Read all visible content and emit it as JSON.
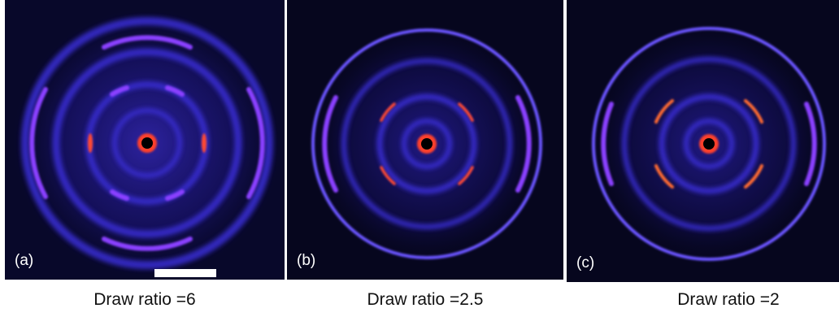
{
  "panels": [
    {
      "tag": "(a)",
      "caption": "Draw ratio =6"
    },
    {
      "tag": "(b)",
      "caption": "Draw ratio =2.5"
    },
    {
      "tag": "(c)",
      "caption": "Draw ratio =2"
    }
  ],
  "colors": {
    "background": "#06061e",
    "ring": "#4a37ff",
    "hot": "#ff3f2a",
    "beam_stop": "#000000"
  }
}
